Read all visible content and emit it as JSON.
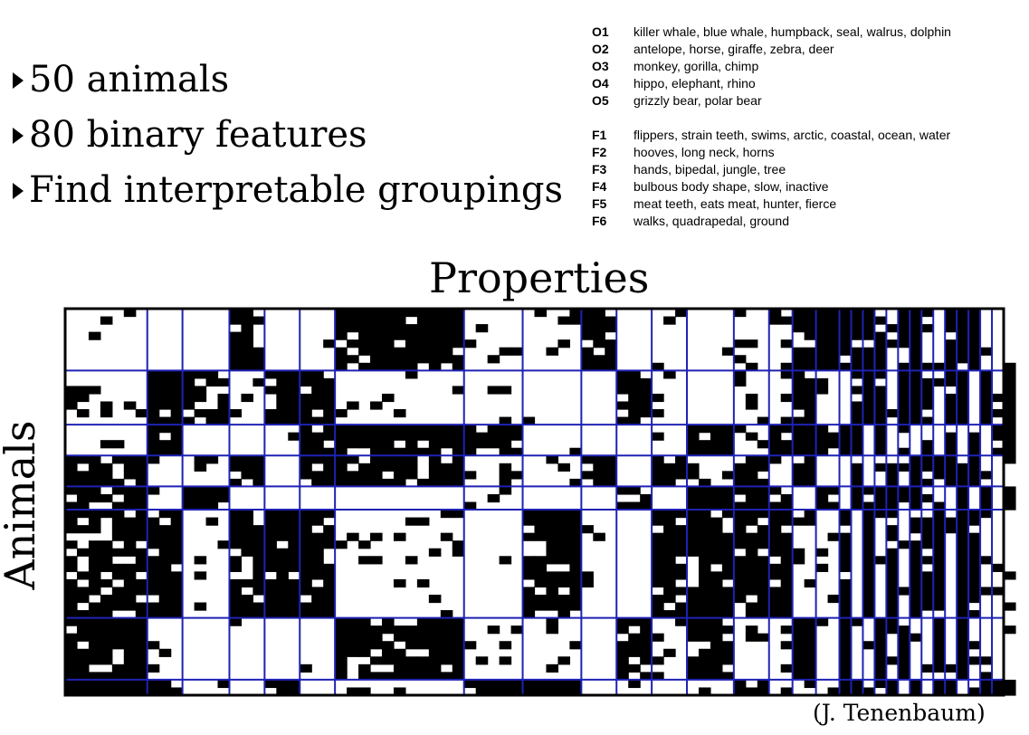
{
  "bullets": {
    "items": [
      "50 animals",
      "80 binary features",
      "Find interpretable groupings"
    ]
  },
  "legend": {
    "objects": [
      {
        "code": "O1",
        "text": "killer whale, blue whale, humpback, seal, walrus, dolphin"
      },
      {
        "code": "O2",
        "text": "antelope, horse, giraffe, zebra, deer"
      },
      {
        "code": "O3",
        "text": "monkey, gorilla, chimp"
      },
      {
        "code": "O4",
        "text": "hippo, elephant, rhino"
      },
      {
        "code": "O5",
        "text": "grizzly bear, polar bear"
      }
    ],
    "features": [
      {
        "code": "F1",
        "text": "flippers, strain teeth, swims, arctic, coastal, ocean, water"
      },
      {
        "code": "F2",
        "text": "hooves, long neck, horns"
      },
      {
        "code": "F3",
        "text": "hands, bipedal, jungle, tree"
      },
      {
        "code": "F4",
        "text": "bulbous body shape, slow, inactive"
      },
      {
        "code": "F5",
        "text": "meat teeth, eats meat, hunter, fierce"
      },
      {
        "code": "F6",
        "text": "walks, quadrapedal, ground"
      }
    ]
  },
  "matrix": {
    "x_label": "Properties",
    "y_label": "Animals",
    "cell_color": "#000000",
    "grid_color": "#1f22b4",
    "rows": 50,
    "cols": 80
  },
  "credit": "(J. Tenenbaum)"
}
